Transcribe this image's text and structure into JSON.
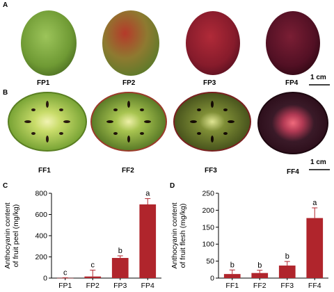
{
  "panels": {
    "a": "A",
    "b": "B",
    "c": "C",
    "d": "D"
  },
  "photos_peel": {
    "labels": [
      "FP1",
      "FP2",
      "FP3",
      "FP4"
    ],
    "scale_label": "1 cm"
  },
  "photos_flesh": {
    "labels": [
      "FF1",
      "FF2",
      "FF3",
      "FF4"
    ],
    "scale_label": "1 cm"
  },
  "colors": {
    "bar": "#b0252c",
    "fruit_green": "#7aa33a",
    "fruit_red": "#8e1c24",
    "fruit_dark": "#4a0e1c",
    "flesh_core": "#e8ef9a"
  },
  "chart_data": [
    {
      "type": "bar",
      "title": "",
      "xlabel": "",
      "ylabel_lines": [
        "Anthocyanin content",
        "of fruit peel (mg/kg)"
      ],
      "categories": [
        "FP1",
        "FP2",
        "FP3",
        "FP4"
      ],
      "values": [
        1,
        15,
        190,
        695
      ],
      "errors": [
        2,
        60,
        20,
        55
      ],
      "significance": [
        "c",
        "c",
        "b",
        "a"
      ],
      "ylim": [
        0,
        800
      ],
      "yticks": [
        0,
        200,
        400,
        600,
        800
      ],
      "grid": false
    },
    {
      "type": "bar",
      "title": "",
      "xlabel": "",
      "ylabel_lines": [
        "Anthocyanin content",
        "of fruit flesh (mg/kg)"
      ],
      "categories": [
        "FF1",
        "FF2",
        "FF3",
        "FF4"
      ],
      "values": [
        12,
        15,
        37,
        177
      ],
      "errors": [
        12,
        8,
        12,
        30
      ],
      "significance": [
        "b",
        "b",
        "b",
        "a"
      ],
      "ylim": [
        0,
        250
      ],
      "yticks": [
        0,
        50,
        100,
        150,
        200,
        250
      ],
      "grid": false
    }
  ]
}
